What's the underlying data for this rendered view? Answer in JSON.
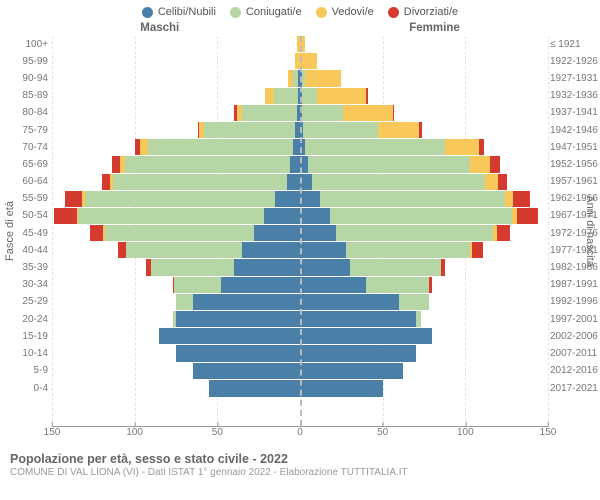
{
  "type": "population-pyramid",
  "legend": [
    {
      "label": "Celibi/Nubili",
      "color": "#4a7fa8"
    },
    {
      "label": "Coniugati/e",
      "color": "#b6d6a6"
    },
    {
      "label": "Vedovi/e",
      "color": "#f8c85a"
    },
    {
      "label": "Divorziati/e",
      "color": "#d53a2e"
    }
  ],
  "headers": {
    "left": "Maschi",
    "right": "Femmine"
  },
  "axis": {
    "y_left_label": "Fasce di età",
    "y_right_label": "Anni di nascita",
    "x_max": 150,
    "x_ticks": [
      150,
      100,
      50,
      0,
      50,
      100,
      150
    ]
  },
  "colors": {
    "single": "#4a7fa8",
    "married": "#b6d6a6",
    "widowed": "#f8c85a",
    "divorced": "#d53a2e",
    "grid": "#e4e4e4",
    "centerline": "#bbbbbb",
    "text": "#666666",
    "background": "#ffffff"
  },
  "rows": [
    {
      "age": "100+",
      "years": "≤ 1921",
      "m": [
        0,
        0,
        2,
        0
      ],
      "f": [
        0,
        0,
        3,
        0
      ]
    },
    {
      "age": "95-99",
      "years": "1922-1926",
      "m": [
        0,
        0,
        3,
        0
      ],
      "f": [
        0,
        0,
        10,
        0
      ]
    },
    {
      "age": "90-94",
      "years": "1927-1931",
      "m": [
        1,
        3,
        3,
        0
      ],
      "f": [
        1,
        2,
        22,
        0
      ]
    },
    {
      "age": "85-89",
      "years": "1932-1936",
      "m": [
        1,
        15,
        5,
        0
      ],
      "f": [
        1,
        9,
        30,
        1
      ]
    },
    {
      "age": "80-84",
      "years": "1937-1941",
      "m": [
        2,
        33,
        3,
        2
      ],
      "f": [
        1,
        25,
        30,
        1
      ]
    },
    {
      "age": "75-79",
      "years": "1942-1946",
      "m": [
        3,
        55,
        3,
        1
      ],
      "f": [
        2,
        45,
        25,
        2
      ]
    },
    {
      "age": "70-74",
      "years": "1947-1951",
      "m": [
        4,
        88,
        5,
        3
      ],
      "f": [
        3,
        85,
        20,
        3
      ]
    },
    {
      "age": "65-69",
      "years": "1952-1956",
      "m": [
        6,
        100,
        3,
        5
      ],
      "f": [
        5,
        98,
        12,
        6
      ]
    },
    {
      "age": "60-64",
      "years": "1957-1961",
      "m": [
        8,
        105,
        2,
        5
      ],
      "f": [
        7,
        105,
        8,
        5
      ]
    },
    {
      "age": "55-59",
      "years": "1962-1966",
      "m": [
        15,
        115,
        2,
        10
      ],
      "f": [
        12,
        112,
        5,
        10
      ]
    },
    {
      "age": "50-54",
      "years": "1967-1971",
      "m": [
        22,
        112,
        1,
        14
      ],
      "f": [
        18,
        110,
        3,
        13
      ]
    },
    {
      "age": "45-49",
      "years": "1972-1976",
      "m": [
        28,
        90,
        1,
        8
      ],
      "f": [
        22,
        95,
        2,
        8
      ]
    },
    {
      "age": "40-44",
      "years": "1977-1981",
      "m": [
        35,
        70,
        0,
        5
      ],
      "f": [
        28,
        75,
        1,
        7
      ]
    },
    {
      "age": "35-39",
      "years": "1982-1986",
      "m": [
        40,
        50,
        0,
        3
      ],
      "f": [
        30,
        55,
        0,
        3
      ]
    },
    {
      "age": "30-34",
      "years": "1987-1991",
      "m": [
        48,
        28,
        0,
        1
      ],
      "f": [
        40,
        38,
        0,
        2
      ]
    },
    {
      "age": "25-29",
      "years": "1992-1996",
      "m": [
        65,
        10,
        0,
        0
      ],
      "f": [
        60,
        18,
        0,
        0
      ]
    },
    {
      "age": "20-24",
      "years": "1997-2001",
      "m": [
        75,
        2,
        0,
        0
      ],
      "f": [
        70,
        3,
        0,
        0
      ]
    },
    {
      "age": "15-19",
      "years": "2002-2006",
      "m": [
        85,
        0,
        0,
        0
      ],
      "f": [
        80,
        0,
        0,
        0
      ]
    },
    {
      "age": "10-14",
      "years": "2007-2011",
      "m": [
        75,
        0,
        0,
        0
      ],
      "f": [
        70,
        0,
        0,
        0
      ]
    },
    {
      "age": "5-9",
      "years": "2012-2016",
      "m": [
        65,
        0,
        0,
        0
      ],
      "f": [
        62,
        0,
        0,
        0
      ]
    },
    {
      "age": "0-4",
      "years": "2017-2021",
      "m": [
        55,
        0,
        0,
        0
      ],
      "f": [
        50,
        0,
        0,
        0
      ]
    }
  ],
  "footer": {
    "title": "Popolazione per età, sesso e stato civile - 2022",
    "subtitle": "COMUNE DI VAL LIONA (VI) - Dati ISTAT 1° gennaio 2022 - Elaborazione TUTTITALIA.IT"
  }
}
